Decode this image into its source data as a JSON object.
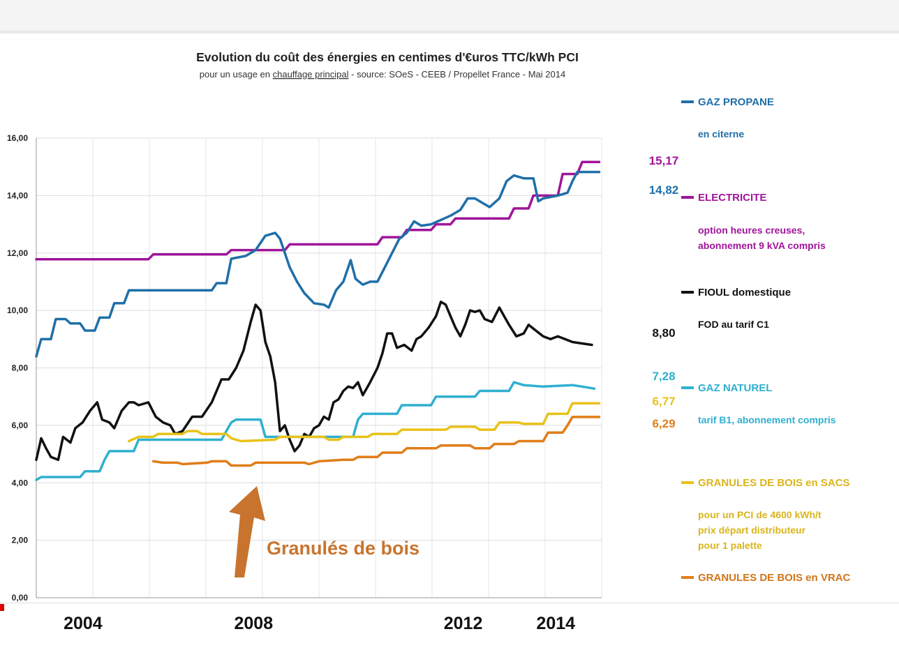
{
  "chart_data": {
    "type": "line",
    "title": "Evolution du coût des énergies en centimes d'€uros TTC/kWh PCI",
    "subtitle_pre": "pour un usage en ",
    "subtitle_underlined": "chauffage principal",
    "subtitle_post": " - source: SOeS  - CEEB / Propellet France - Mai 2014",
    "ylim": [
      0,
      16
    ],
    "y_ticks": [
      "0,00",
      "2,00",
      "4,00",
      "6,00",
      "8,00",
      "10,00",
      "12,00",
      "14,00",
      "16,00"
    ],
    "x_range": [
      2003.0,
      2014.6
    ],
    "grid": true,
    "year_labels": [
      {
        "text": "2004",
        "x": 2003.5
      },
      {
        "text": "2008",
        "x": 2007.0
      },
      {
        "text": "2012",
        "x": 2011.3
      },
      {
        "text": "2014",
        "x": 2013.2
      }
    ],
    "series": [
      {
        "name": "ELECTRICITE",
        "description": [
          "option heures creuses,",
          "abonnement 9 kVA compris"
        ],
        "color": "#a0149a",
        "end_label": "15,17",
        "points": [
          [
            2003.0,
            11.78
          ],
          [
            2005.3,
            11.78
          ],
          [
            2005.4,
            11.95
          ],
          [
            2006.9,
            11.95
          ],
          [
            2007.0,
            12.1
          ],
          [
            2008.1,
            12.1
          ],
          [
            2008.2,
            12.3
          ],
          [
            2010.0,
            12.3
          ],
          [
            2010.1,
            12.55
          ],
          [
            2010.5,
            12.55
          ],
          [
            2010.6,
            12.8
          ],
          [
            2011.1,
            12.8
          ],
          [
            2011.2,
            13.0
          ],
          [
            2011.5,
            13.0
          ],
          [
            2011.6,
            13.2
          ],
          [
            2012.7,
            13.2
          ],
          [
            2012.8,
            13.55
          ],
          [
            2013.1,
            13.55
          ],
          [
            2013.2,
            14.0
          ],
          [
            2013.7,
            14.0
          ],
          [
            2013.8,
            14.75
          ],
          [
            2014.1,
            14.75
          ],
          [
            2014.2,
            15.17
          ],
          [
            2014.55,
            15.17
          ]
        ]
      },
      {
        "name": "GAZ PROPANE",
        "description": [
          "en citerne"
        ],
        "color": "#1f6fa8",
        "end_label": "14,82",
        "points": [
          [
            2003.0,
            8.4
          ],
          [
            2003.1,
            9.0
          ],
          [
            2003.3,
            9.0
          ],
          [
            2003.4,
            9.7
          ],
          [
            2003.6,
            9.7
          ],
          [
            2003.7,
            9.55
          ],
          [
            2003.9,
            9.55
          ],
          [
            2004.0,
            9.3
          ],
          [
            2004.2,
            9.3
          ],
          [
            2004.3,
            9.75
          ],
          [
            2004.5,
            9.75
          ],
          [
            2004.6,
            10.25
          ],
          [
            2004.8,
            10.25
          ],
          [
            2004.9,
            10.7
          ],
          [
            2006.6,
            10.7
          ],
          [
            2006.7,
            10.95
          ],
          [
            2006.9,
            10.95
          ],
          [
            2007.0,
            11.8
          ],
          [
            2007.3,
            11.9
          ],
          [
            2007.5,
            12.1
          ],
          [
            2007.7,
            12.6
          ],
          [
            2007.9,
            12.7
          ],
          [
            2008.0,
            12.5
          ],
          [
            2008.1,
            12.0
          ],
          [
            2008.2,
            11.5
          ],
          [
            2008.35,
            11.0
          ],
          [
            2008.5,
            10.6
          ],
          [
            2008.7,
            10.25
          ],
          [
            2008.9,
            10.2
          ],
          [
            2009.0,
            10.1
          ],
          [
            2009.15,
            10.7
          ],
          [
            2009.3,
            11.0
          ],
          [
            2009.45,
            11.75
          ],
          [
            2009.55,
            11.1
          ],
          [
            2009.7,
            10.9
          ],
          [
            2009.85,
            11.0
          ],
          [
            2010.0,
            11.0
          ],
          [
            2010.15,
            11.5
          ],
          [
            2010.3,
            12.0
          ],
          [
            2010.45,
            12.5
          ],
          [
            2010.6,
            12.7
          ],
          [
            2010.75,
            13.1
          ],
          [
            2010.9,
            12.95
          ],
          [
            2011.1,
            13.0
          ],
          [
            2011.3,
            13.15
          ],
          [
            2011.5,
            13.3
          ],
          [
            2011.7,
            13.5
          ],
          [
            2011.85,
            13.9
          ],
          [
            2012.0,
            13.9
          ],
          [
            2012.15,
            13.75
          ],
          [
            2012.3,
            13.6
          ],
          [
            2012.5,
            13.9
          ],
          [
            2012.65,
            14.5
          ],
          [
            2012.8,
            14.7
          ],
          [
            2013.0,
            14.6
          ],
          [
            2013.2,
            14.6
          ],
          [
            2013.3,
            13.8
          ],
          [
            2013.4,
            13.9
          ],
          [
            2013.7,
            14.0
          ],
          [
            2013.9,
            14.1
          ],
          [
            2014.0,
            14.5
          ],
          [
            2014.1,
            14.82
          ],
          [
            2014.55,
            14.82
          ]
        ]
      },
      {
        "name": "FIOUL domestique",
        "description": [
          "FOD au tarif C1"
        ],
        "color": "#111111",
        "end_label": "8,80",
        "points": [
          [
            2003.0,
            4.8
          ],
          [
            2003.1,
            5.55
          ],
          [
            2003.2,
            5.2
          ],
          [
            2003.3,
            4.9
          ],
          [
            2003.45,
            4.8
          ],
          [
            2003.55,
            5.6
          ],
          [
            2003.7,
            5.4
          ],
          [
            2003.8,
            5.9
          ],
          [
            2003.95,
            6.1
          ],
          [
            2004.1,
            6.5
          ],
          [
            2004.25,
            6.8
          ],
          [
            2004.35,
            6.2
          ],
          [
            2004.5,
            6.1
          ],
          [
            2004.6,
            5.9
          ],
          [
            2004.75,
            6.5
          ],
          [
            2004.9,
            6.8
          ],
          [
            2005.0,
            6.8
          ],
          [
            2005.1,
            6.7
          ],
          [
            2005.3,
            6.8
          ],
          [
            2005.45,
            6.3
          ],
          [
            2005.6,
            6.1
          ],
          [
            2005.75,
            6.0
          ],
          [
            2005.85,
            5.7
          ],
          [
            2006.0,
            5.8
          ],
          [
            2006.2,
            6.3
          ],
          [
            2006.4,
            6.3
          ],
          [
            2006.6,
            6.8
          ],
          [
            2006.8,
            7.6
          ],
          [
            2006.95,
            7.6
          ],
          [
            2007.1,
            8.0
          ],
          [
            2007.25,
            8.6
          ],
          [
            2007.4,
            9.6
          ],
          [
            2007.5,
            10.2
          ],
          [
            2007.6,
            10.0
          ],
          [
            2007.7,
            8.9
          ],
          [
            2007.8,
            8.4
          ],
          [
            2007.9,
            7.5
          ],
          [
            2008.0,
            5.8
          ],
          [
            2008.1,
            6.0
          ],
          [
            2008.2,
            5.5
          ],
          [
            2008.3,
            5.1
          ],
          [
            2008.4,
            5.3
          ],
          [
            2008.5,
            5.7
          ],
          [
            2008.6,
            5.6
          ],
          [
            2008.7,
            5.9
          ],
          [
            2008.8,
            6.0
          ],
          [
            2008.9,
            6.3
          ],
          [
            2009.0,
            6.2
          ],
          [
            2009.1,
            6.8
          ],
          [
            2009.2,
            6.9
          ],
          [
            2009.3,
            7.2
          ],
          [
            2009.4,
            7.35
          ],
          [
            2009.5,
            7.3
          ],
          [
            2009.6,
            7.5
          ],
          [
            2009.7,
            7.05
          ],
          [
            2009.85,
            7.5
          ],
          [
            2010.0,
            8.0
          ],
          [
            2010.1,
            8.5
          ],
          [
            2010.2,
            9.2
          ],
          [
            2010.3,
            9.2
          ],
          [
            2010.4,
            8.7
          ],
          [
            2010.55,
            8.8
          ],
          [
            2010.7,
            8.6
          ],
          [
            2010.8,
            9.0
          ],
          [
            2010.9,
            9.1
          ],
          [
            2011.05,
            9.4
          ],
          [
            2011.2,
            9.8
          ],
          [
            2011.3,
            10.3
          ],
          [
            2011.4,
            10.2
          ],
          [
            2011.5,
            9.8
          ],
          [
            2011.6,
            9.4
          ],
          [
            2011.7,
            9.1
          ],
          [
            2011.8,
            9.5
          ],
          [
            2011.9,
            10.0
          ],
          [
            2012.0,
            9.95
          ],
          [
            2012.1,
            10.0
          ],
          [
            2012.2,
            9.7
          ],
          [
            2012.35,
            9.6
          ],
          [
            2012.5,
            10.1
          ],
          [
            2012.6,
            9.8
          ],
          [
            2012.7,
            9.5
          ],
          [
            2012.85,
            9.1
          ],
          [
            2013.0,
            9.2
          ],
          [
            2013.1,
            9.5
          ],
          [
            2013.25,
            9.3
          ],
          [
            2013.4,
            9.1
          ],
          [
            2013.55,
            9.0
          ],
          [
            2013.7,
            9.1
          ],
          [
            2013.85,
            9.0
          ],
          [
            2014.0,
            8.9
          ],
          [
            2014.2,
            8.85
          ],
          [
            2014.4,
            8.8
          ]
        ]
      },
      {
        "name": "GAZ NATUREL",
        "description": [
          "tarif B1, abonnement compris"
        ],
        "color": "#2fb0cf",
        "end_label": "7,28",
        "points": [
          [
            2003.0,
            4.1
          ],
          [
            2003.1,
            4.2
          ],
          [
            2003.9,
            4.2
          ],
          [
            2004.0,
            4.4
          ],
          [
            2004.3,
            4.4
          ],
          [
            2004.4,
            4.8
          ],
          [
            2004.5,
            5.1
          ],
          [
            2005.0,
            5.1
          ],
          [
            2005.1,
            5.5
          ],
          [
            2006.8,
            5.5
          ],
          [
            2006.9,
            5.8
          ],
          [
            2007.0,
            6.1
          ],
          [
            2007.1,
            6.2
          ],
          [
            2007.6,
            6.2
          ],
          [
            2007.7,
            5.6
          ],
          [
            2008.5,
            5.6
          ],
          [
            2008.6,
            5.6
          ],
          [
            2009.5,
            5.6
          ],
          [
            2009.6,
            6.2
          ],
          [
            2009.7,
            6.4
          ],
          [
            2010.4,
            6.4
          ],
          [
            2010.5,
            6.7
          ],
          [
            2011.1,
            6.7
          ],
          [
            2011.2,
            7.0
          ],
          [
            2012.0,
            7.0
          ],
          [
            2012.1,
            7.2
          ],
          [
            2012.7,
            7.2
          ],
          [
            2012.8,
            7.5
          ],
          [
            2013.0,
            7.4
          ],
          [
            2013.4,
            7.35
          ],
          [
            2014.0,
            7.4
          ],
          [
            2014.2,
            7.35
          ],
          [
            2014.45,
            7.28
          ]
        ]
      },
      {
        "name": "GRANULES DE BOIS en SACS",
        "description": [
          "pour un PCI de 4600 kWh/t",
          "prix départ distributeur",
          "pour 1 palette"
        ],
        "color": "#e8c21a",
        "end_label": "6,77",
        "points": [
          [
            2004.9,
            5.45
          ],
          [
            2005.1,
            5.6
          ],
          [
            2005.4,
            5.6
          ],
          [
            2005.5,
            5.7
          ],
          [
            2006.0,
            5.7
          ],
          [
            2006.1,
            5.8
          ],
          [
            2006.3,
            5.8
          ],
          [
            2006.4,
            5.7
          ],
          [
            2006.9,
            5.7
          ],
          [
            2007.0,
            5.55
          ],
          [
            2007.2,
            5.45
          ],
          [
            2007.9,
            5.5
          ],
          [
            2008.0,
            5.6
          ],
          [
            2008.9,
            5.6
          ],
          [
            2009.0,
            5.5
          ],
          [
            2009.2,
            5.5
          ],
          [
            2009.3,
            5.6
          ],
          [
            2009.8,
            5.6
          ],
          [
            2009.9,
            5.7
          ],
          [
            2010.4,
            5.7
          ],
          [
            2010.5,
            5.85
          ],
          [
            2011.4,
            5.85
          ],
          [
            2011.5,
            5.95
          ],
          [
            2012.0,
            5.95
          ],
          [
            2012.1,
            5.85
          ],
          [
            2012.4,
            5.85
          ],
          [
            2012.5,
            6.1
          ],
          [
            2012.9,
            6.1
          ],
          [
            2013.0,
            6.05
          ],
          [
            2013.4,
            6.05
          ],
          [
            2013.5,
            6.4
          ],
          [
            2013.9,
            6.4
          ],
          [
            2014.0,
            6.77
          ],
          [
            2014.55,
            6.77
          ]
        ]
      },
      {
        "name": "GRANULES DE BOIS en VRAC",
        "description": [],
        "color": "#e07d18",
        "end_label": "6,29",
        "points": [
          [
            2005.4,
            4.75
          ],
          [
            2005.6,
            4.7
          ],
          [
            2005.9,
            4.7
          ],
          [
            2006.0,
            4.65
          ],
          [
            2006.5,
            4.7
          ],
          [
            2006.6,
            4.75
          ],
          [
            2006.9,
            4.75
          ],
          [
            2007.0,
            4.6
          ],
          [
            2007.4,
            4.6
          ],
          [
            2007.5,
            4.7
          ],
          [
            2008.5,
            4.7
          ],
          [
            2008.6,
            4.65
          ],
          [
            2008.8,
            4.75
          ],
          [
            2009.3,
            4.8
          ],
          [
            2009.5,
            4.8
          ],
          [
            2009.6,
            4.9
          ],
          [
            2010.0,
            4.9
          ],
          [
            2010.1,
            5.05
          ],
          [
            2010.5,
            5.05
          ],
          [
            2010.6,
            5.2
          ],
          [
            2011.2,
            5.2
          ],
          [
            2011.3,
            5.3
          ],
          [
            2011.9,
            5.3
          ],
          [
            2012.0,
            5.2
          ],
          [
            2012.3,
            5.2
          ],
          [
            2012.4,
            5.35
          ],
          [
            2012.8,
            5.35
          ],
          [
            2012.9,
            5.45
          ],
          [
            2013.4,
            5.45
          ],
          [
            2013.5,
            5.75
          ],
          [
            2013.8,
            5.75
          ],
          [
            2013.9,
            6.0
          ],
          [
            2014.0,
            6.29
          ],
          [
            2014.55,
            6.29
          ]
        ]
      }
    ],
    "annotation": {
      "text": "Granulés de bois",
      "arrow_color": "#c8742e"
    }
  }
}
